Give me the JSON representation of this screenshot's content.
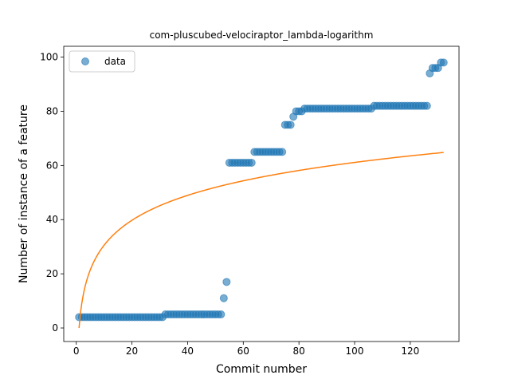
{
  "chart_data": {
    "type": "scatter",
    "title": "com-pluscubed-velociraptor_lambda-logarithm",
    "xlabel": "Commit number",
    "ylabel": "Number of instance of a feature",
    "xlim": [
      -4.5,
      137.5
    ],
    "ylim": [
      -5,
      104
    ],
    "xticks": [
      0,
      20,
      40,
      60,
      80,
      100,
      120
    ],
    "yticks": [
      0,
      20,
      40,
      60,
      80,
      100
    ],
    "legend": {
      "position": "top-left",
      "entries": [
        "data"
      ]
    },
    "colors": {
      "data": "#1f77b4",
      "fit": "#ff7f0e"
    },
    "series": [
      {
        "name": "data",
        "kind": "scatter",
        "segments": [
          {
            "x_start": 1,
            "x_end": 31,
            "y": 4
          },
          {
            "x_start": 32,
            "x_end": 52,
            "y": 5
          },
          {
            "x_start": 53,
            "x_end": 53,
            "y": 11
          },
          {
            "x_start": 54,
            "x_end": 54,
            "y": 17
          },
          {
            "x_start": 55,
            "x_end": 63,
            "y": 61
          },
          {
            "x_start": 64,
            "x_end": 74,
            "y": 65
          },
          {
            "x_start": 75,
            "x_end": 77,
            "y": 75
          },
          {
            "x_start": 78,
            "x_end": 78,
            "y": 78
          },
          {
            "x_start": 79,
            "x_end": 81,
            "y": 80
          },
          {
            "x_start": 82,
            "x_end": 106,
            "y": 81
          },
          {
            "x_start": 107,
            "x_end": 126,
            "y": 82
          },
          {
            "x_start": 127,
            "x_end": 127,
            "y": 94
          },
          {
            "x_start": 128,
            "x_end": 130,
            "y": 96
          },
          {
            "x_start": 131,
            "x_end": 132,
            "y": 98
          }
        ]
      },
      {
        "kind": "line",
        "model": "logarithmic",
        "x_range": [
          1,
          132
        ],
        "points": [
          {
            "x": 1,
            "y": 0
          },
          {
            "x": 2,
            "y": 9.2
          },
          {
            "x": 5,
            "y": 21.4
          },
          {
            "x": 10,
            "y": 30.6
          },
          {
            "x": 20,
            "y": 39.8
          },
          {
            "x": 40,
            "y": 49.0
          },
          {
            "x": 60,
            "y": 54.4
          },
          {
            "x": 80,
            "y": 58.2
          },
          {
            "x": 100,
            "y": 61.2
          },
          {
            "x": 120,
            "y": 63.6
          },
          {
            "x": 132,
            "y": 64.8
          }
        ]
      }
    ]
  }
}
